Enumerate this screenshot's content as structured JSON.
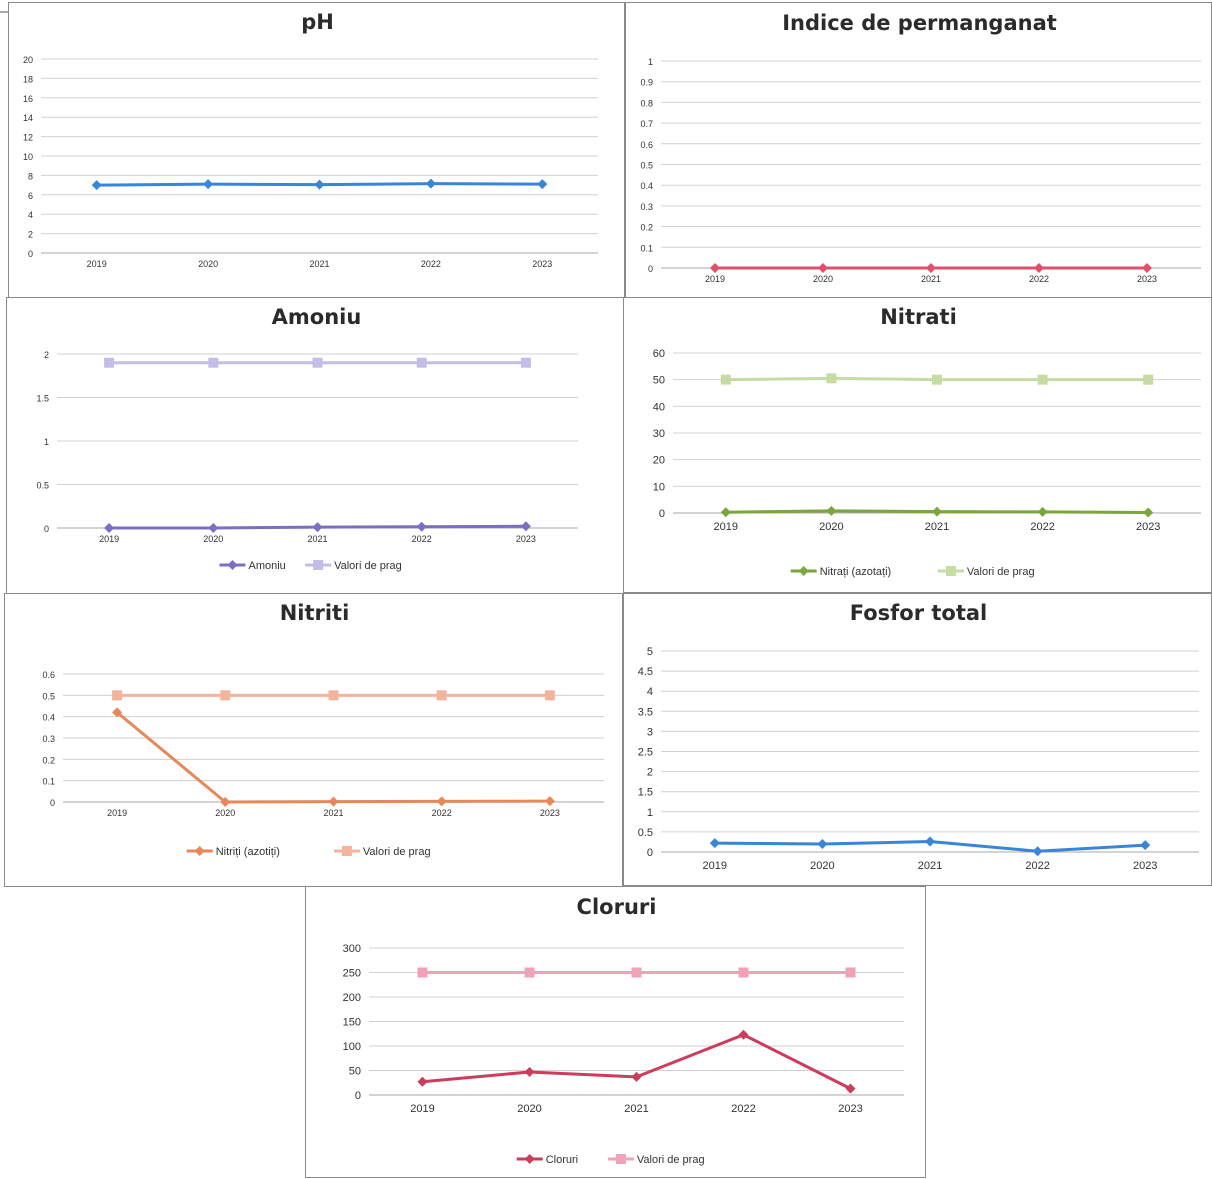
{
  "chart_data": [
    {
      "id": "ph",
      "type": "line",
      "title": "pH",
      "categories": [
        "2019",
        "2020",
        "2021",
        "2022",
        "2023"
      ],
      "ylim": [
        0,
        20
      ],
      "yticks": [
        "0",
        "2",
        "4",
        "6",
        "8",
        "10",
        "12",
        "14",
        "16",
        "18",
        "20"
      ],
      "grid": true,
      "legend": "none",
      "series": [
        {
          "values": [
            7.0,
            7.1,
            7.05,
            7.15,
            7.1
          ],
          "color": "#3a86d6",
          "marker": "diamond"
        }
      ]
    },
    {
      "id": "permanganat",
      "type": "line",
      "title": "Indice de permanganat",
      "categories": [
        "2019",
        "2020",
        "2021",
        "2022",
        "2023"
      ],
      "ylim": [
        0,
        1
      ],
      "yticks": [
        "0",
        "0.1",
        "0.2",
        "0.3",
        "0.4",
        "0.5",
        "0.6",
        "0.7",
        "0.8",
        "0.9",
        "1"
      ],
      "grid": true,
      "legend": "none",
      "series": [
        {
          "values": [
            0,
            0,
            0,
            0,
            0
          ],
          "color": "#e0506a",
          "marker": "diamond"
        }
      ]
    },
    {
      "id": "amoniu",
      "type": "line",
      "title": "Amoniu",
      "categories": [
        "2019",
        "2020",
        "2021",
        "2022",
        "2023"
      ],
      "ylim": [
        0,
        2
      ],
      "yticks": [
        "0",
        "0.5",
        "1",
        "1.5",
        "2"
      ],
      "grid": true,
      "legend": "bottom",
      "series": [
        {
          "name": "Amoniu",
          "values": [
            0.0,
            0.0,
            0.01,
            0.015,
            0.02
          ],
          "color": "#7b6fc4",
          "marker": "diamond"
        },
        {
          "name": "Valori de prag",
          "values": [
            1.9,
            1.9,
            1.9,
            1.9,
            1.9
          ],
          "color": "#c5bce8",
          "marker": "square"
        }
      ]
    },
    {
      "id": "nitrati",
      "type": "line",
      "title": "Nitrati",
      "categories": [
        "2019",
        "2020",
        "2021",
        "2022",
        "2023"
      ],
      "ylim": [
        0,
        60
      ],
      "yticks": [
        "0",
        "10",
        "20",
        "30",
        "40",
        "50",
        "60"
      ],
      "grid": true,
      "legend": "bottom",
      "series": [
        {
          "name": "Nitrați (azotați)",
          "values": [
            0.3,
            0.8,
            0.5,
            0.4,
            0.2
          ],
          "color": "#7aa63c",
          "marker": "diamond"
        },
        {
          "name": "Valori de prag",
          "values": [
            50,
            50.5,
            50,
            50,
            50
          ],
          "color": "#c5dca2",
          "marker": "square"
        }
      ]
    },
    {
      "id": "nitriti",
      "type": "line",
      "title": "Nitriti",
      "categories": [
        "2019",
        "2020",
        "2021",
        "2022",
        "2023"
      ],
      "ylim": [
        0,
        0.6
      ],
      "yticks": [
        "0",
        "0.1",
        "0.2",
        "0.3",
        "0.4",
        "0.5",
        "0.6"
      ],
      "grid": true,
      "legend": "bottom",
      "series": [
        {
          "name": "Nitriți (azotiți)",
          "values": [
            0.42,
            0.0,
            0.002,
            0.003,
            0.004
          ],
          "color": "#e8875a",
          "marker": "diamond"
        },
        {
          "name": "Valori de prag",
          "values": [
            0.5,
            0.5,
            0.5,
            0.5,
            0.5
          ],
          "color": "#f4b49c",
          "marker": "square"
        }
      ]
    },
    {
      "id": "fosfor",
      "type": "line",
      "title": "Fosfor total",
      "categories": [
        "2019",
        "2020",
        "2021",
        "2022",
        "2023"
      ],
      "ylim": [
        0,
        5
      ],
      "yticks": [
        "0",
        "0.5",
        "1",
        "1.5",
        "2",
        "2.5",
        "3",
        "3.5",
        "4",
        "4.5",
        "5"
      ],
      "grid": true,
      "legend": "none",
      "series": [
        {
          "values": [
            0.22,
            0.2,
            0.26,
            0.02,
            0.17
          ],
          "color": "#3a86d6",
          "marker": "diamond"
        }
      ]
    },
    {
      "id": "cloruri",
      "type": "line",
      "title": "Cloruri",
      "categories": [
        "2019",
        "2020",
        "2021",
        "2022",
        "2023"
      ],
      "ylim": [
        0,
        300
      ],
      "yticks": [
        "0",
        "50",
        "100",
        "150",
        "200",
        "250",
        "300"
      ],
      "grid": true,
      "legend": "bottom",
      "series": [
        {
          "name": "Cloruri",
          "values": [
            27,
            47,
            37,
            123,
            13
          ],
          "color": "#cc3d5c",
          "marker": "diamond"
        },
        {
          "name": "Valori de prag",
          "values": [
            250,
            250,
            250,
            250,
            250
          ],
          "color": "#f0a2b6",
          "marker": "square"
        }
      ]
    }
  ]
}
